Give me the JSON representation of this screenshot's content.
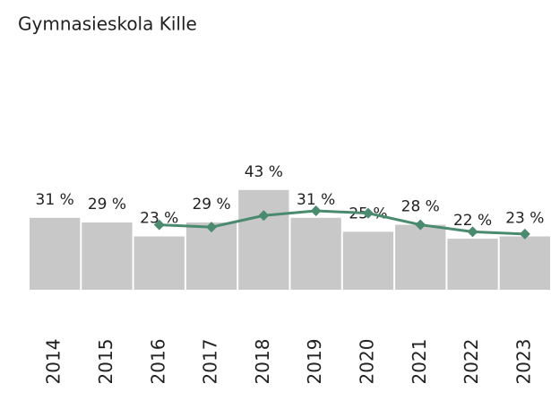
{
  "chart_data": {
    "type": "bar-line",
    "title": "Gymnasieskola Kille",
    "categories": [
      "2014",
      "2015",
      "2016",
      "2017",
      "2018",
      "2019",
      "2020",
      "2021",
      "2022",
      "2023"
    ],
    "ylim": [
      0,
      121
    ],
    "series": [
      {
        "type": "bar",
        "color": "#c8c8c8",
        "values": [
          31,
          29,
          23,
          29,
          43,
          31,
          25,
          28,
          22,
          23
        ],
        "value_labels": [
          "31 %",
          "29 %",
          "23 %",
          "29 %",
          "43 %",
          "31 %",
          "25 %",
          "28 %",
          "22 %",
          "23 %"
        ]
      },
      {
        "type": "line",
        "color": "#4a8a6e",
        "values": [
          null,
          null,
          28,
          27,
          32,
          34,
          33,
          28,
          25,
          24
        ]
      }
    ]
  }
}
